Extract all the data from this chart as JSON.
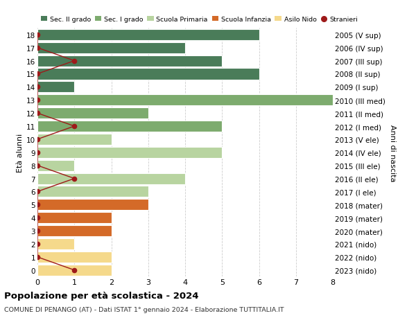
{
  "ages": [
    18,
    17,
    16,
    15,
    14,
    13,
    12,
    11,
    10,
    9,
    8,
    7,
    6,
    5,
    4,
    3,
    2,
    1,
    0
  ],
  "years": [
    "2005 (V sup)",
    "2006 (IV sup)",
    "2007 (III sup)",
    "2008 (II sup)",
    "2009 (I sup)",
    "2010 (III med)",
    "2011 (II med)",
    "2012 (I med)",
    "2013 (V ele)",
    "2014 (IV ele)",
    "2015 (III ele)",
    "2016 (II ele)",
    "2017 (I ele)",
    "2018 (mater)",
    "2019 (mater)",
    "2020 (mater)",
    "2021 (nido)",
    "2022 (nido)",
    "2023 (nido)"
  ],
  "bar_values": [
    6,
    4,
    5,
    6,
    1,
    8,
    3,
    5,
    2,
    5,
    1,
    4,
    3,
    3,
    2,
    2,
    1,
    2,
    2
  ],
  "bar_colors": [
    "#4a7c59",
    "#4a7c59",
    "#4a7c59",
    "#4a7c59",
    "#4a7c59",
    "#7dab6e",
    "#7dab6e",
    "#7dab6e",
    "#b8d4a0",
    "#b8d4a0",
    "#b8d4a0",
    "#b8d4a0",
    "#b8d4a0",
    "#d46a28",
    "#d46a28",
    "#d46a28",
    "#f5d98b",
    "#f5d98b",
    "#f5d98b"
  ],
  "stranieri_values": [
    0,
    0,
    1,
    0,
    0,
    0,
    0,
    1,
    0,
    0,
    0,
    1,
    0,
    0,
    0,
    0,
    0,
    0,
    1
  ],
  "title": "Popolazione per età scolastica - 2024",
  "subtitle": "COMUNE DI PENANGO (AT) - Dati ISTAT 1° gennaio 2024 - Elaborazione TUTTITALIA.IT",
  "ylabel_left": "Età alunni",
  "ylabel_right": "Anni di nascita",
  "legend_labels": [
    "Sec. II grado",
    "Sec. I grado",
    "Scuola Primaria",
    "Scuola Infanzia",
    "Asilo Nido",
    "Stranieri"
  ],
  "legend_colors": [
    "#4a7c59",
    "#7dab6e",
    "#b8d4a0",
    "#d46a28",
    "#f5d98b",
    "#9e1a1a"
  ],
  "xlim": [
    0,
    8
  ],
  "background_color": "#ffffff",
  "bar_edge_color": "#ffffff",
  "grid_color": "#cccccc",
  "stranieri_line_color": "#9e1a1a",
  "stranieri_dot_color": "#9e1a1a"
}
